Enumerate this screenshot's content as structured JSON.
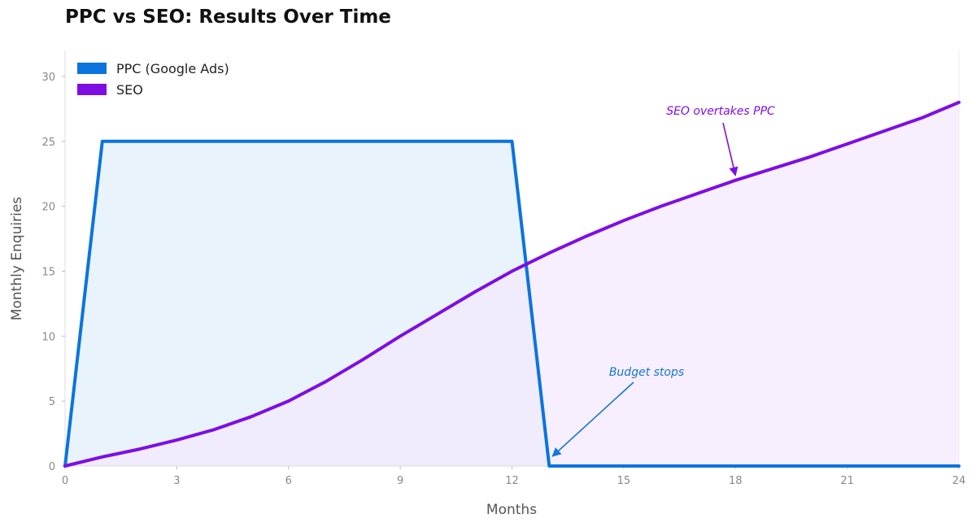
{
  "chart_data": {
    "type": "area",
    "title": "PPC vs SEO: Results Over Time",
    "xlabel": "Months",
    "ylabel": "Monthly Enquiries",
    "xlim": [
      0,
      24
    ],
    "ylim": [
      0,
      32
    ],
    "xticks": [
      0,
      3,
      6,
      9,
      12,
      15,
      18,
      21,
      24
    ],
    "yticks": [
      0,
      5,
      10,
      15,
      20,
      25,
      30
    ],
    "grid": false,
    "legend_position": "top-left",
    "series": [
      {
        "name": "PPC (Google Ads)",
        "color": "#0b74de",
        "fill": "#e6f2fc",
        "x": [
          0,
          1,
          12,
          13,
          24
        ],
        "y": [
          0,
          25,
          25,
          0,
          0
        ]
      },
      {
        "name": "SEO",
        "color": "#7e0ee3",
        "fill": "#f3e8fd",
        "x": [
          0,
          1,
          2,
          3,
          4,
          5,
          6,
          7,
          8,
          9,
          10,
          11,
          12,
          13,
          14,
          15,
          16,
          17,
          18,
          19,
          20,
          21,
          22,
          23,
          24
        ],
        "y": [
          0,
          0.7,
          1.3,
          2.0,
          2.8,
          3.8,
          5.0,
          6.5,
          8.2,
          10.0,
          11.7,
          13.4,
          15.0,
          16.4,
          17.7,
          18.9,
          20.0,
          21.0,
          22.0,
          22.9,
          23.8,
          24.8,
          25.8,
          26.8,
          28.0
        ]
      }
    ],
    "annotations": [
      {
        "text": "Budget stops",
        "x": 13,
        "y": 0,
        "color": "#1577d6"
      },
      {
        "text": "SEO overtakes PPC",
        "x": 18,
        "y": 22,
        "color": "#7e0ee3"
      }
    ]
  }
}
